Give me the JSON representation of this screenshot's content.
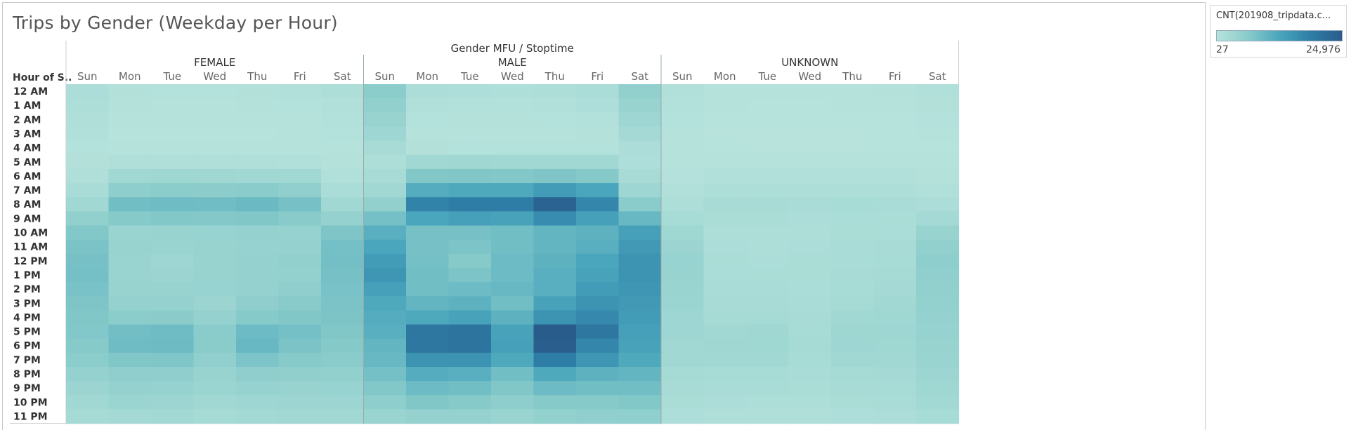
{
  "title": "Trips by Gender (Weekday per Hour)",
  "legend": {
    "title": "CNT(201908_tripdata.c...",
    "min_label": "27",
    "max_label": "24,976",
    "color_low": "#b7e3dc",
    "color_high": "#2a5c8b"
  },
  "chart_data": {
    "type": "heatmap",
    "title": "Trips by Gender (Weekday per Hour)",
    "column_header": "Gender MFU / Stoptime",
    "row_header": "Hour of S..",
    "groups": [
      "FEMALE",
      "MALE",
      "UNKNOWN"
    ],
    "days": [
      "Sun",
      "Mon",
      "Tue",
      "Wed",
      "Thu",
      "Fri",
      "Sat"
    ],
    "hours": [
      "12 AM",
      "1 AM",
      "2 AM",
      "3 AM",
      "4 AM",
      "5 AM",
      "6 AM",
      "7 AM",
      "8 AM",
      "9 AM",
      "10 AM",
      "11 AM",
      "12 PM",
      "1 PM",
      "2 PM",
      "3 PM",
      "4 PM",
      "5 PM",
      "6 PM",
      "7 PM",
      "8 PM",
      "9 PM",
      "10 PM",
      "11 PM"
    ],
    "range": [
      27,
      24976
    ],
    "values": {
      "FEMALE": [
        [
          1500,
          600,
          500,
          500,
          600,
          900,
          1300
        ],
        [
          1300,
          400,
          300,
          300,
          400,
          500,
          900
        ],
        [
          1000,
          200,
          200,
          200,
          200,
          300,
          700
        ],
        [
          800,
          150,
          100,
          100,
          150,
          200,
          500
        ],
        [
          500,
          200,
          200,
          200,
          200,
          200,
          350
        ],
        [
          600,
          1000,
          1000,
          1000,
          1000,
          900,
          400
        ],
        [
          1000,
          3000,
          3200,
          3100,
          3000,
          2800,
          800
        ],
        [
          1800,
          5500,
          5800,
          5700,
          6000,
          5200,
          1700
        ],
        [
          3000,
          8500,
          8800,
          8600,
          9200,
          8000,
          2800
        ],
        [
          5000,
          6500,
          6800,
          6700,
          7000,
          6200,
          4500
        ],
        [
          6800,
          4000,
          4200,
          4300,
          4600,
          4400,
          7200
        ],
        [
          7600,
          4100,
          4000,
          4200,
          4400,
          4500,
          8200
        ],
        [
          8000,
          4000,
          3500,
          4100,
          4500,
          4900,
          8300
        ],
        [
          8200,
          4000,
          3800,
          4200,
          4500,
          4800,
          8100
        ],
        [
          7800,
          4200,
          4200,
          4300,
          4600,
          5400,
          7800
        ],
        [
          7200,
          4600,
          4600,
          3800,
          5400,
          6200,
          7600
        ],
        [
          7000,
          5800,
          5900,
          4500,
          6400,
          7000,
          7400
        ],
        [
          6900,
          8400,
          8800,
          6000,
          9000,
          8200,
          7000
        ],
        [
          6400,
          8800,
          8900,
          6100,
          9500,
          7600,
          6600
        ],
        [
          5800,
          7000,
          7100,
          5200,
          7500,
          6400,
          6000
        ],
        [
          4700,
          5400,
          5400,
          4200,
          5400,
          5100,
          5000
        ],
        [
          3800,
          4500,
          4400,
          3700,
          4400,
          4200,
          4300
        ],
        [
          3000,
          3700,
          3600,
          3000,
          3500,
          3600,
          3600
        ],
        [
          2300,
          2600,
          2700,
          2400,
          2700,
          3000,
          2800
        ]
      ],
      "MALE": [
        [
          5800,
          1500,
          1200,
          1100,
          1300,
          1700,
          5000
        ],
        [
          5000,
          900,
          700,
          700,
          900,
          1200,
          4200
        ],
        [
          4200,
          500,
          400,
          400,
          500,
          700,
          3500
        ],
        [
          3300,
          300,
          200,
          250,
          300,
          400,
          2600
        ],
        [
          2000,
          600,
          500,
          500,
          500,
          500,
          1500
        ],
        [
          1400,
          3000,
          3100,
          3000,
          3000,
          2800,
          1200
        ],
        [
          2000,
          6800,
          7000,
          6800,
          7200,
          6600,
          2000
        ],
        [
          3000,
          11500,
          12000,
          12000,
          14000,
          12500,
          3500
        ],
        [
          5000,
          18000,
          19000,
          19000,
          23500,
          17500,
          6000
        ],
        [
          8200,
          12500,
          13500,
          13000,
          16500,
          13500,
          9500
        ],
        [
          11000,
          8000,
          8000,
          8500,
          10000,
          10500,
          13500
        ],
        [
          12500,
          8000,
          7500,
          8500,
          10000,
          11000,
          14500
        ],
        [
          14000,
          8200,
          6500,
          9000,
          10500,
          12500,
          15500
        ],
        [
          15000,
          8500,
          7500,
          9000,
          11000,
          13000,
          15500
        ],
        [
          13500,
          8500,
          9000,
          9500,
          11000,
          14000,
          15000
        ],
        [
          12000,
          10000,
          10500,
          8500,
          13000,
          15500,
          14500
        ],
        [
          11500,
          12000,
          13000,
          10500,
          15500,
          17000,
          14000
        ],
        [
          11000,
          20000,
          20500,
          13000,
          24976,
          20000,
          13500
        ],
        [
          10000,
          20000,
          20500,
          13500,
          24500,
          17500,
          13000
        ],
        [
          9500,
          15500,
          15500,
          12000,
          19000,
          15000,
          12000
        ],
        [
          8200,
          11500,
          11000,
          8500,
          12000,
          10500,
          10000
        ],
        [
          6800,
          9000,
          8500,
          7000,
          9000,
          8500,
          8500
        ],
        [
          5500,
          7000,
          6500,
          5500,
          6500,
          6500,
          6800
        ],
        [
          4000,
          4500,
          4500,
          4000,
          4800,
          5200,
          5300
        ]
      ],
      "UNKNOWN": [
        [
          900,
          300,
          250,
          250,
          300,
          400,
          800
        ],
        [
          700,
          200,
          150,
          150,
          200,
          250,
          600
        ],
        [
          500,
          100,
          100,
          100,
          100,
          150,
          450
        ],
        [
          350,
          80,
          60,
          60,
          80,
          100,
          300
        ],
        [
          200,
          100,
          80,
          80,
          80,
          100,
          150
        ],
        [
          250,
          300,
          300,
          300,
          300,
          300,
          200
        ],
        [
          450,
          800,
          800,
          800,
          800,
          800,
          400
        ],
        [
          800,
          1400,
          1400,
          1300,
          1400,
          1300,
          800
        ],
        [
          1400,
          2000,
          2000,
          1900,
          2100,
          1900,
          1500
        ],
        [
          2200,
          1600,
          1600,
          1500,
          1700,
          1600,
          2600
        ],
        [
          3200,
          1400,
          1300,
          1400,
          1600,
          1700,
          4200
        ],
        [
          3800,
          1500,
          1400,
          1500,
          1800,
          2000,
          5000
        ],
        [
          4300,
          1600,
          1500,
          1600,
          1900,
          2200,
          5500
        ],
        [
          4200,
          1700,
          1600,
          1600,
          2000,
          2300,
          5200
        ],
        [
          4000,
          1800,
          1800,
          1700,
          2200,
          2600,
          5000
        ],
        [
          3700,
          2000,
          2000,
          1800,
          2400,
          2900,
          4800
        ],
        [
          3500,
          2300,
          2400,
          2000,
          2800,
          3200,
          4600
        ],
        [
          3300,
          2900,
          3100,
          2200,
          3400,
          3300,
          4400
        ],
        [
          3000,
          3100,
          3200,
          2300,
          3500,
          3200,
          4200
        ],
        [
          2800,
          2800,
          2800,
          2100,
          3000,
          2800,
          4000
        ],
        [
          2400,
          2200,
          2200,
          1800,
          2400,
          2500,
          3600
        ],
        [
          2000,
          1900,
          1800,
          1600,
          2000,
          2200,
          3200
        ],
        [
          1600,
          1500,
          1400,
          1300,
          1600,
          1900,
          2700
        ],
        [
          1200,
          1000,
          1000,
          1000,
          1200,
          1500,
          2200
        ]
      ]
    }
  }
}
